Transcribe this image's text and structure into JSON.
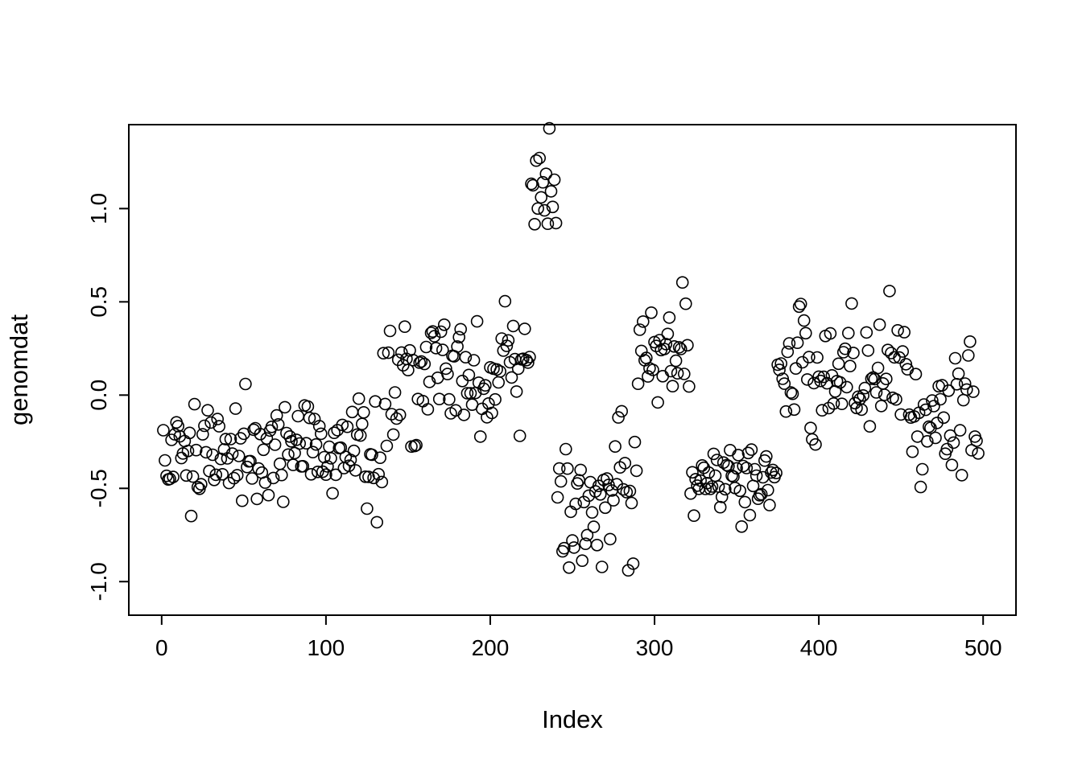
{
  "figure": {
    "background_color": "#ffffff",
    "foreground_color": "#000000"
  },
  "chart_data": {
    "type": "scatter",
    "title": "",
    "xlabel": "Index",
    "ylabel": "genomdat",
    "xlim": [
      -20,
      520
    ],
    "ylim": [
      -1.18,
      1.45
    ],
    "x_ticks": [
      0,
      100,
      200,
      300,
      400,
      500
    ],
    "x_tick_labels": [
      "0",
      "100",
      "200",
      "300",
      "400",
      "500"
    ],
    "y_ticks": [
      -1.0,
      -0.5,
      0.0,
      0.5,
      1.0
    ],
    "y_tick_labels": [
      "-1.0",
      "-0.5",
      "0.0",
      "0.5",
      "1.0"
    ],
    "grid": false,
    "legend": null,
    "marker": {
      "shape": "open-circle",
      "radius": 7,
      "stroke": "#000000",
      "stroke_width": 1.6,
      "fill": "none"
    },
    "n_points": 497,
    "seed": 1337,
    "segments": [
      {
        "x_start": 1,
        "x_end": 135,
        "mean": -0.29,
        "sd": 0.15
      },
      {
        "x_start": 135,
        "x_end": 225,
        "mean": 0.1,
        "sd": 0.16
      },
      {
        "x_start": 225,
        "x_end": 241,
        "mean": 1.03,
        "sd": 0.17
      },
      {
        "x_start": 241,
        "x_end": 290,
        "mean": -0.55,
        "sd": 0.2
      },
      {
        "x_start": 290,
        "x_end": 322,
        "mean": 0.22,
        "sd": 0.12
      },
      {
        "x_start": 322,
        "x_end": 375,
        "mean": -0.45,
        "sd": 0.13
      },
      {
        "x_start": 375,
        "x_end": 456,
        "mean": 0.12,
        "sd": 0.16
      },
      {
        "x_start": 456,
        "x_end": 498,
        "mean": -0.15,
        "sd": 0.15
      }
    ]
  }
}
